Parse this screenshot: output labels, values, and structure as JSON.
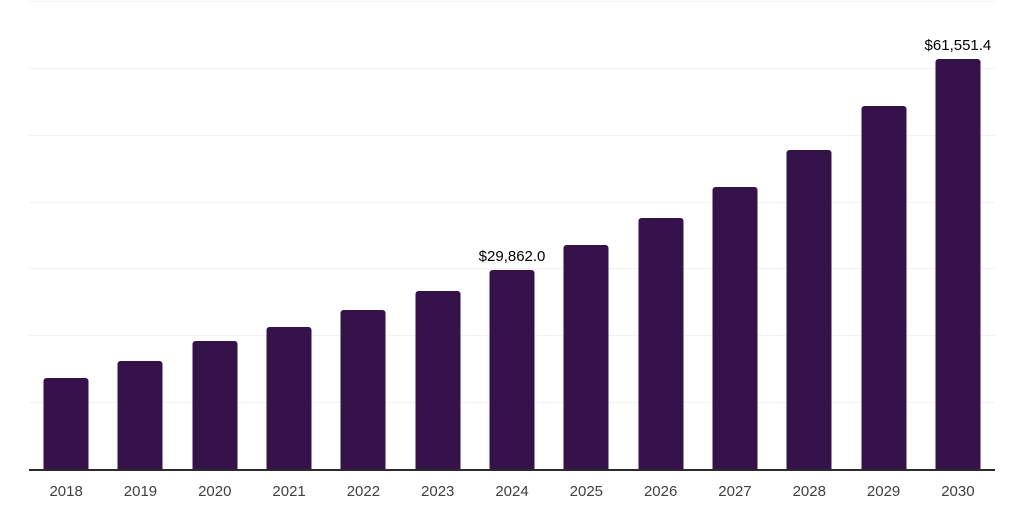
{
  "chart_data": {
    "type": "bar",
    "title": "",
    "xlabel": "",
    "ylabel": "",
    "categories": [
      "2018",
      "2019",
      "2020",
      "2021",
      "2022",
      "2023",
      "2024",
      "2025",
      "2026",
      "2027",
      "2028",
      "2029",
      "2030"
    ],
    "values": [
      13700,
      16300,
      19300,
      21400,
      23900,
      26800,
      29862,
      33600,
      37700,
      42300,
      47900,
      54400,
      61551.4
    ],
    "value_labels": {
      "2024": "$29,862.0",
      "2030": "$61,551.4"
    },
    "ylim": [
      0,
      70000
    ],
    "gridline_step": 10000,
    "grid": "horizontal-only",
    "y_axis_tick_labels": "none",
    "legend": "none",
    "colors": {
      "bar": "#351249",
      "gridline": "#f2f2f2",
      "axis": "#2b2b2b",
      "tick_label": "#404040",
      "value_label": "#000000",
      "background": "#ffffff"
    }
  }
}
